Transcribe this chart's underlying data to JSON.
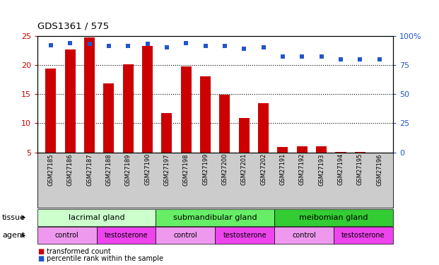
{
  "title": "GDS1361 / 575",
  "samples": [
    "GSM27185",
    "GSM27186",
    "GSM27187",
    "GSM27188",
    "GSM27189",
    "GSM27190",
    "GSM27197",
    "GSM27198",
    "GSM27199",
    "GSM27200",
    "GSM27201",
    "GSM27202",
    "GSM27191",
    "GSM27192",
    "GSM27193",
    "GSM27194",
    "GSM27195",
    "GSM27196"
  ],
  "bar_values": [
    19.4,
    22.7,
    24.7,
    16.8,
    20.1,
    23.3,
    11.8,
    19.7,
    18.0,
    14.9,
    10.9,
    13.4,
    5.9,
    6.0,
    6.1,
    5.1,
    5.1,
    5.0
  ],
  "blue_values": [
    92,
    94,
    93,
    91,
    91,
    93,
    90,
    94,
    91,
    91,
    89,
    90,
    82,
    82,
    82,
    80,
    80,
    80
  ],
  "ylim_left": [
    5,
    25
  ],
  "ylim_right": [
    0,
    100
  ],
  "yticks_left": [
    5,
    10,
    15,
    20,
    25
  ],
  "yticks_right": [
    0,
    25,
    50,
    75,
    100
  ],
  "bar_color": "#CC0000",
  "blue_color": "#2255CC",
  "tissue_groups": [
    {
      "label": "lacrimal gland",
      "start": 0,
      "end": 6,
      "color": "#ccffcc"
    },
    {
      "label": "submandibular gland",
      "start": 6,
      "end": 12,
      "color": "#66ee66"
    },
    {
      "label": "meibomian gland",
      "start": 12,
      "end": 18,
      "color": "#33cc33"
    }
  ],
  "agent_groups": [
    {
      "label": "control",
      "start": 0,
      "end": 3,
      "color": "#ee99ee"
    },
    {
      "label": "testosterone",
      "start": 3,
      "end": 6,
      "color": "#ee44ee"
    },
    {
      "label": "control",
      "start": 6,
      "end": 9,
      "color": "#ee99ee"
    },
    {
      "label": "testosterone",
      "start": 9,
      "end": 12,
      "color": "#ee44ee"
    },
    {
      "label": "control",
      "start": 12,
      "end": 15,
      "color": "#ee99ee"
    },
    {
      "label": "testosterone",
      "start": 15,
      "end": 18,
      "color": "#ee44ee"
    }
  ],
  "fig_width": 6.21,
  "fig_height": 3.75,
  "dpi": 100
}
